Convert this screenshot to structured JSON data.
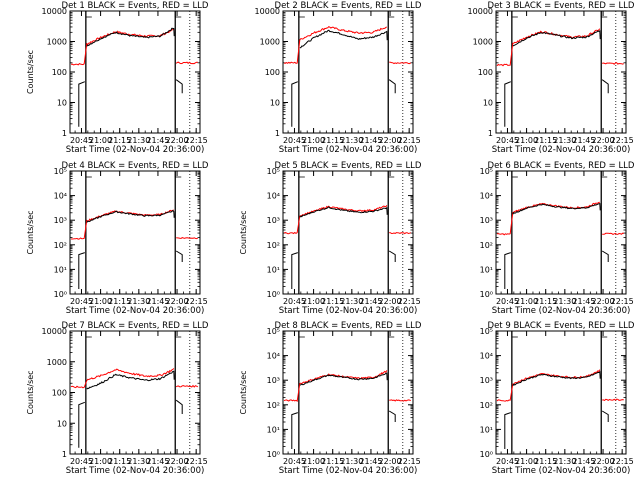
{
  "figure": {
    "background": "#ffffff",
    "events_color": "#000000",
    "lld_color": "#ff0000"
  },
  "chart_data": [
    {
      "type": "line",
      "title": "Det 1 BLACK = Events, RED = LLD",
      "xlabel": "",
      "ylabel": "Counts/sec",
      "ylim": [
        1,
        10000
      ],
      "log_y": true,
      "yticks": [
        1,
        10,
        100,
        1000,
        10000
      ],
      "ytick_labels": [
        "1",
        "10",
        "100",
        "1000",
        "10000"
      ],
      "xlim": [
        "20:36",
        "22:18"
      ],
      "xticks": [
        "20:45",
        "21:00",
        "21:15",
        "21:30",
        "21:45",
        "22:00",
        "22:15"
      ],
      "profile": {
        "lld_pre": 180,
        "lld_in": [
          800,
          1350,
          2100,
          1700,
          1500,
          1550,
          2600
        ],
        "ev_in": [
          700,
          1250,
          2000,
          1550,
          1350,
          1500,
          3000
        ],
        "lld_post": 200,
        "ev_pre": 40,
        "ev_post": 40
      }
    },
    {
      "type": "line",
      "title": "Det 2 BLACK = Events, RED = LLD",
      "xlabel": "",
      "ylabel": "",
      "ylim": [
        1,
        10000
      ],
      "log_y": true,
      "yticks": [
        1,
        10,
        100,
        1000,
        10000
      ],
      "ytick_labels": [
        "1",
        "10",
        "100",
        "1000",
        "10000"
      ],
      "xlim": [
        "20:36",
        "22:18"
      ],
      "xticks": [
        "20:45",
        "21:00",
        "21:15",
        "21:30",
        "21:45",
        "22:00",
        "22:15"
      ],
      "profile": {
        "lld_pre": 200,
        "lld_in": [
          1100,
          1900,
          3000,
          2300,
          1900,
          2000,
          3200
        ],
        "ev_in": [
          600,
          1300,
          2300,
          1700,
          1200,
          1400,
          2200
        ],
        "lld_post": 200,
        "ev_pre": 40,
        "ev_post": 40
      }
    },
    {
      "type": "line",
      "title": "Det 3 BLACK = Events, RED = LLD",
      "xlabel": "",
      "ylabel": "",
      "ylim": [
        1,
        10000
      ],
      "log_y": true,
      "yticks": [
        1,
        10,
        100,
        1000,
        10000
      ],
      "ytick_labels": [
        "1",
        "10",
        "100",
        "1000",
        "10000"
      ],
      "xlim": [
        "20:36",
        "22:18"
      ],
      "xticks": [
        "20:45",
        "21:00",
        "21:15",
        "21:30",
        "21:45",
        "22:00",
        "22:15"
      ],
      "profile": {
        "lld_pre": 170,
        "lld_in": [
          800,
          1400,
          2100,
          1700,
          1400,
          1500,
          2700
        ],
        "ev_in": [
          700,
          1300,
          2000,
          1600,
          1300,
          1400,
          2400
        ],
        "lld_post": 190,
        "ev_pre": 40,
        "ev_post": 40
      }
    },
    {
      "type": "line",
      "title": "Det 4 BLACK = Events, RED = LLD",
      "xlabel": "",
      "ylabel": "Counts/sec",
      "ylim": [
        1,
        100000
      ],
      "log_y": true,
      "yticks": [
        1,
        10,
        100,
        1000,
        10000,
        100000
      ],
      "ytick_labels": [
        "10⁰",
        "10¹",
        "10²",
        "10³",
        "10⁴",
        "10⁵"
      ],
      "xlim": [
        "20:36",
        "22:18"
      ],
      "xticks": [
        "20:45",
        "21:00",
        "21:15",
        "21:30",
        "21:45",
        "22:00",
        "22:15"
      ],
      "profile": {
        "lld_pre": 180,
        "lld_in": [
          900,
          1500,
          2300,
          1900,
          1600,
          1700,
          2800
        ],
        "ev_in": [
          800,
          1400,
          2200,
          1800,
          1500,
          1600,
          2500
        ],
        "lld_post": 190,
        "ev_pre": 40,
        "ev_post": 40
      }
    },
    {
      "type": "line",
      "title": "Det 5 BLACK = Events, RED = LLD",
      "xlabel": "",
      "ylabel": "Counts/sec",
      "ylim": [
        1,
        100000
      ],
      "log_y": true,
      "yticks": [
        1,
        10,
        100,
        1000,
        10000,
        100000
      ],
      "ytick_labels": [
        "10⁰",
        "10¹",
        "10²",
        "10³",
        "10⁴",
        "10⁵"
      ],
      "xlim": [
        "20:36",
        "22:18"
      ],
      "xticks": [
        "20:45",
        "21:00",
        "21:15",
        "21:30",
        "21:45",
        "22:00",
        "22:15"
      ],
      "profile": {
        "lld_pre": 300,
        "lld_in": [
          1500,
          2300,
          3600,
          2800,
          2400,
          2600,
          4000
        ],
        "ev_in": [
          1300,
          2200,
          3300,
          2500,
          2100,
          2300,
          3300
        ],
        "lld_post": 300,
        "ev_pre": 40,
        "ev_post": 40
      }
    },
    {
      "type": "line",
      "title": "Det 6 BLACK = Events, RED = LLD",
      "xlabel": "",
      "ylabel": "",
      "ylim": [
        1,
        100000
      ],
      "log_y": true,
      "yticks": [
        1,
        10,
        100,
        1000,
        10000,
        100000
      ],
      "ytick_labels": [
        "10⁰",
        "10¹",
        "10²",
        "10³",
        "10⁴",
        "10⁵"
      ],
      "xlim": [
        "20:36",
        "22:18"
      ],
      "xticks": [
        "20:45",
        "21:00",
        "21:15",
        "21:30",
        "21:45",
        "22:00",
        "22:15"
      ],
      "profile": {
        "lld_pre": 270,
        "lld_in": [
          2000,
          3300,
          4600,
          3800,
          3200,
          3400,
          6000
        ],
        "ev_in": [
          1800,
          3100,
          4400,
          3500,
          3000,
          3200,
          5000
        ],
        "lld_post": 280,
        "ev_pre": 40,
        "ev_post": 40
      }
    },
    {
      "type": "line",
      "title": "Det 7 BLACK = Events, RED = LLD",
      "xlabel": "",
      "ylabel": "Counts/sec",
      "ylim": [
        1,
        10000
      ],
      "log_y": true,
      "yticks": [
        1,
        10,
        100,
        1000,
        10000
      ],
      "ytick_labels": [
        "1",
        "10",
        "100",
        "1000",
        "10000"
      ],
      "xlim": [
        "20:36",
        "22:18"
      ],
      "xticks": [
        "20:45",
        "21:00",
        "21:15",
        "21:30",
        "21:45",
        "22:00",
        "22:15"
      ],
      "profile": {
        "lld_pre": 150,
        "lld_in": [
          250,
          350,
          550,
          420,
          340,
          360,
          600
        ],
        "ev_in": [
          130,
          200,
          380,
          300,
          250,
          280,
          520
        ],
        "lld_post": 160,
        "ev_pre": 40,
        "ev_post": 40
      }
    },
    {
      "type": "line",
      "title": "Det 8 BLACK = Events, RED = LLD",
      "xlabel": "",
      "ylabel": "Counts/sec",
      "ylim": [
        1,
        100000
      ],
      "log_y": true,
      "yticks": [
        1,
        10,
        100,
        1000,
        10000,
        100000
      ],
      "ytick_labels": [
        "10⁰",
        "10¹",
        "10²",
        "10³",
        "10⁴",
        "10⁵"
      ],
      "xlim": [
        "20:36",
        "22:18"
      ],
      "xticks": [
        "20:45",
        "21:00",
        "21:15",
        "21:30",
        "21:45",
        "22:00",
        "22:15"
      ],
      "profile": {
        "lld_pre": 150,
        "lld_in": [
          700,
          1100,
          1700,
          1400,
          1200,
          1300,
          2500
        ],
        "ev_in": [
          600,
          1000,
          1600,
          1300,
          1100,
          1200,
          2000
        ],
        "lld_post": 150,
        "ev_pre": 40,
        "ev_post": 40
      }
    },
    {
      "type": "line",
      "title": "Det 9 BLACK = Events, RED = LLD",
      "xlabel": "",
      "ylabel": "",
      "ylim": [
        1,
        100000
      ],
      "log_y": true,
      "yticks": [
        1,
        10,
        100,
        1000,
        10000,
        100000
      ],
      "ytick_labels": [
        "10⁰",
        "10¹",
        "10²",
        "10³",
        "10⁴",
        "10⁵"
      ],
      "xlim": [
        "20:36",
        "22:18"
      ],
      "xticks": [
        "20:45",
        "21:00",
        "21:15",
        "21:30",
        "21:45",
        "22:00",
        "22:15"
      ],
      "profile": {
        "lld_pre": 150,
        "lld_in": [
          700,
          1200,
          1800,
          1500,
          1300,
          1400,
          2700
        ],
        "ev_in": [
          600,
          1100,
          1700,
          1400,
          1200,
          1300,
          2300
        ],
        "lld_post": 160,
        "ev_pre": 40,
        "ev_post": 40
      }
    }
  ],
  "xaxis_label": "Start Time (02-Nov-04 20:36:00)"
}
